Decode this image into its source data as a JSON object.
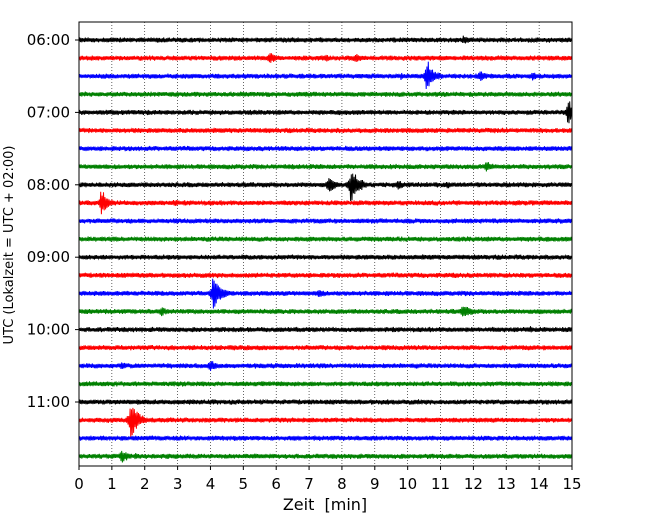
{
  "chart_data": {
    "type": "line",
    "xlabel": "Zeit  [min]",
    "ylabel": "UTC (Lokalzeit = UTC + 02:00)",
    "xlim": [
      0,
      15
    ],
    "x_ticks": [
      "0",
      "1",
      "2",
      "3",
      "4",
      "5",
      "6",
      "7",
      "8",
      "9",
      "10",
      "11",
      "12",
      "13",
      "14",
      "15"
    ],
    "y_tick_labels": [
      "06:00",
      "07:00",
      "08:00",
      "09:00",
      "10:00",
      "11:00"
    ],
    "grid": "vertical dotted lines at each minute",
    "trace_colors": [
      "#000000",
      "#ff0000",
      "#0000ff",
      "#008000"
    ],
    "traces": [
      {
        "start": "06:00",
        "events": [
          {
            "t": 11.7,
            "amp": 5
          },
          {
            "t": 14.3,
            "amp": 3
          }
        ]
      },
      {
        "start": "06:15",
        "events": [
          {
            "t": 5.8,
            "amp": 6
          },
          {
            "t": 8.4,
            "amp": 5
          },
          {
            "t": 7.5,
            "amp": 4
          }
        ]
      },
      {
        "start": "06:30",
        "events": [
          {
            "t": 10.6,
            "amp": 13
          },
          {
            "t": 12.2,
            "amp": 6
          },
          {
            "t": 13.8,
            "amp": 5
          },
          {
            "t": 9.8,
            "amp": 4
          }
        ]
      },
      {
        "start": "06:45",
        "events": [
          {
            "t": 4.9,
            "amp": 3
          }
        ]
      },
      {
        "start": "07:00",
        "events": [
          {
            "t": 14.9,
            "amp": 11
          }
        ]
      },
      {
        "start": "07:15",
        "events": []
      },
      {
        "start": "07:30",
        "events": [
          {
            "t": 8.1,
            "amp": 3
          }
        ]
      },
      {
        "start": "07:45",
        "events": [
          {
            "t": 12.4,
            "amp": 6
          },
          {
            "t": 6.5,
            "amp": 3
          }
        ]
      },
      {
        "start": "08:00",
        "events": [
          {
            "t": 8.3,
            "amp": 16
          },
          {
            "t": 7.6,
            "amp": 8
          },
          {
            "t": 9.7,
            "amp": 5
          },
          {
            "t": 11.2,
            "amp": 4
          }
        ]
      },
      {
        "start": "08:15",
        "events": [
          {
            "t": 0.7,
            "amp": 10
          },
          {
            "t": 2.9,
            "amp": 4
          }
        ]
      },
      {
        "start": "08:30",
        "events": [
          {
            "t": 10.0,
            "amp": 3
          }
        ]
      },
      {
        "start": "08:45",
        "events": [
          {
            "t": 14.0,
            "amp": 3
          }
        ]
      },
      {
        "start": "09:00",
        "events": [
          {
            "t": 13.4,
            "amp": 3
          }
        ]
      },
      {
        "start": "09:15",
        "events": [
          {
            "t": 11.4,
            "amp": 3
          }
        ]
      },
      {
        "start": "09:30",
        "events": [
          {
            "t": 4.1,
            "amp": 14
          },
          {
            "t": 7.3,
            "amp": 5
          },
          {
            "t": 8.3,
            "amp": 3
          }
        ]
      },
      {
        "start": "09:45",
        "events": [
          {
            "t": 2.5,
            "amp": 5
          },
          {
            "t": 11.7,
            "amp": 8
          }
        ]
      },
      {
        "start": "10:00",
        "events": [
          {
            "t": 13.7,
            "amp": 4
          }
        ]
      },
      {
        "start": "10:15",
        "events": [
          {
            "t": 10.1,
            "amp": 3
          }
        ]
      },
      {
        "start": "10:30",
        "events": [
          {
            "t": 4.0,
            "amp": 6
          },
          {
            "t": 1.3,
            "amp": 4
          }
        ]
      },
      {
        "start": "10:45",
        "events": []
      },
      {
        "start": "11:00",
        "events": [
          {
            "t": 9.4,
            "amp": 3
          }
        ]
      },
      {
        "start": "11:15",
        "events": [
          {
            "t": 1.6,
            "amp": 16
          },
          {
            "t": 1.5,
            "amp": 6
          }
        ]
      },
      {
        "start": "11:30",
        "events": [
          {
            "t": 9.0,
            "amp": 3
          }
        ]
      },
      {
        "start": "11:45",
        "events": [
          {
            "t": 1.3,
            "amp": 7
          },
          {
            "t": 1.7,
            "amp": 4
          },
          {
            "t": 3.0,
            "amp": 3
          }
        ]
      }
    ]
  }
}
